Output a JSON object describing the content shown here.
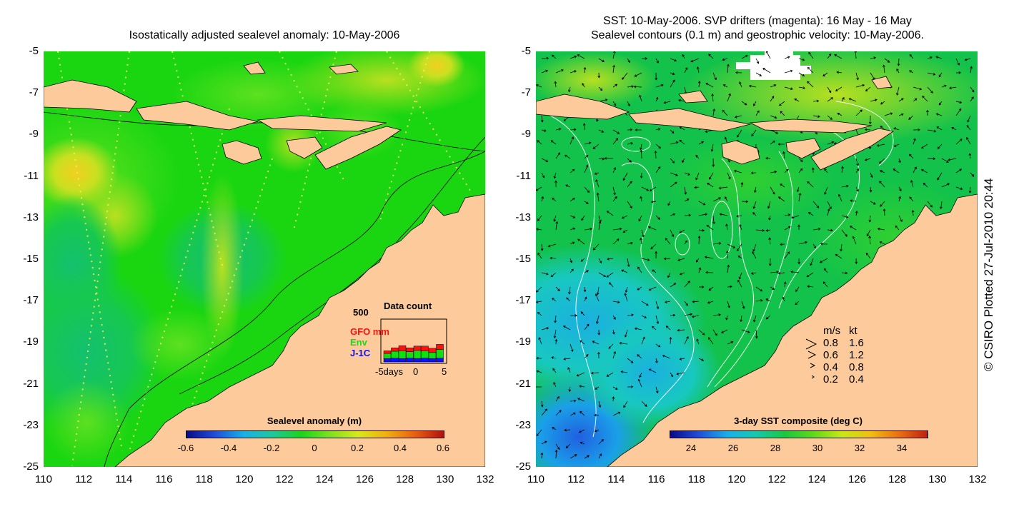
{
  "left_panel": {
    "title": "Isostatically adjusted sealevel anomaly: 10-May-2006",
    "colorbar": {
      "label": "Sealevel anomaly (m)",
      "ticks": [
        "-0.6",
        "-0.4",
        "-0.2",
        "0",
        "0.2",
        "0.4",
        "0.6"
      ],
      "colors": [
        "#0a0a8a",
        "#1f4fd8",
        "#18b0e8",
        "#1ec8a0",
        "#18d41c",
        "#7de020",
        "#d8e81c",
        "#f0b010",
        "#e86010",
        "#b01010"
      ]
    },
    "data_count": {
      "title": "Data count",
      "ymax_label": "500",
      "series": [
        {
          "name": "GFO mm",
          "color": "#ff1010"
        },
        {
          "name": "Env",
          "color": "#10e010"
        },
        {
          "name": "J-1C",
          "color": "#1010ff"
        }
      ],
      "x_labels": [
        "-5days",
        "0",
        "5"
      ],
      "bars": [
        {
          "j": 40,
          "e": 60,
          "g": 30
        },
        {
          "j": 45,
          "e": 80,
          "g": 40
        },
        {
          "j": 40,
          "e": 90,
          "g": 60
        },
        {
          "j": 45,
          "e": 75,
          "g": 45
        },
        {
          "j": 40,
          "e": 95,
          "g": 50
        },
        {
          "j": 45,
          "e": 85,
          "g": 55
        },
        {
          "j": 40,
          "e": 70,
          "g": 50
        },
        {
          "j": 45,
          "e": 100,
          "g": 60
        }
      ]
    }
  },
  "right_panel": {
    "title_line1": "SST: 10-May-2006. SVP drifters (magenta): 16 May - 16 May",
    "title_line2": "Sealevel contours (0.1 m) and geostrophic velocity: 10-May-2006.",
    "colorbar": {
      "label": "3-day SST composite (deg C)",
      "ticks": [
        "24",
        "26",
        "28",
        "30",
        "32",
        "34"
      ],
      "colors": [
        "#0a0a8a",
        "#1f4fd8",
        "#18b0e8",
        "#16c8b0",
        "#18c840",
        "#60d818",
        "#c8e818",
        "#f0c010",
        "#e87010",
        "#c02010"
      ]
    },
    "velocity_legend": {
      "header_ms": "m/s",
      "header_kt": "kt",
      "rows": [
        {
          "ms": "0.8",
          "kt": "1.6"
        },
        {
          "ms": "0.6",
          "kt": "1.2"
        },
        {
          "ms": "0.4",
          "kt": "0.8"
        },
        {
          "ms": "0.2",
          "kt": "0.4"
        }
      ]
    }
  },
  "axes": {
    "y_ticks": [
      "-5",
      "-7",
      "-9",
      "-11",
      "-13",
      "-15",
      "-17",
      "-19",
      "-21",
      "-23",
      "-25"
    ],
    "x_ticks": [
      "110",
      "112",
      "114",
      "116",
      "118",
      "120",
      "122",
      "124",
      "126",
      "128",
      "130",
      "132"
    ]
  },
  "copyright": "© CSIRO Plotted 27-Jul-2010 20:44",
  "colors": {
    "land": "#fdcb9b",
    "sea_left": "#1ad611",
    "sea_right": "#12c24a"
  }
}
